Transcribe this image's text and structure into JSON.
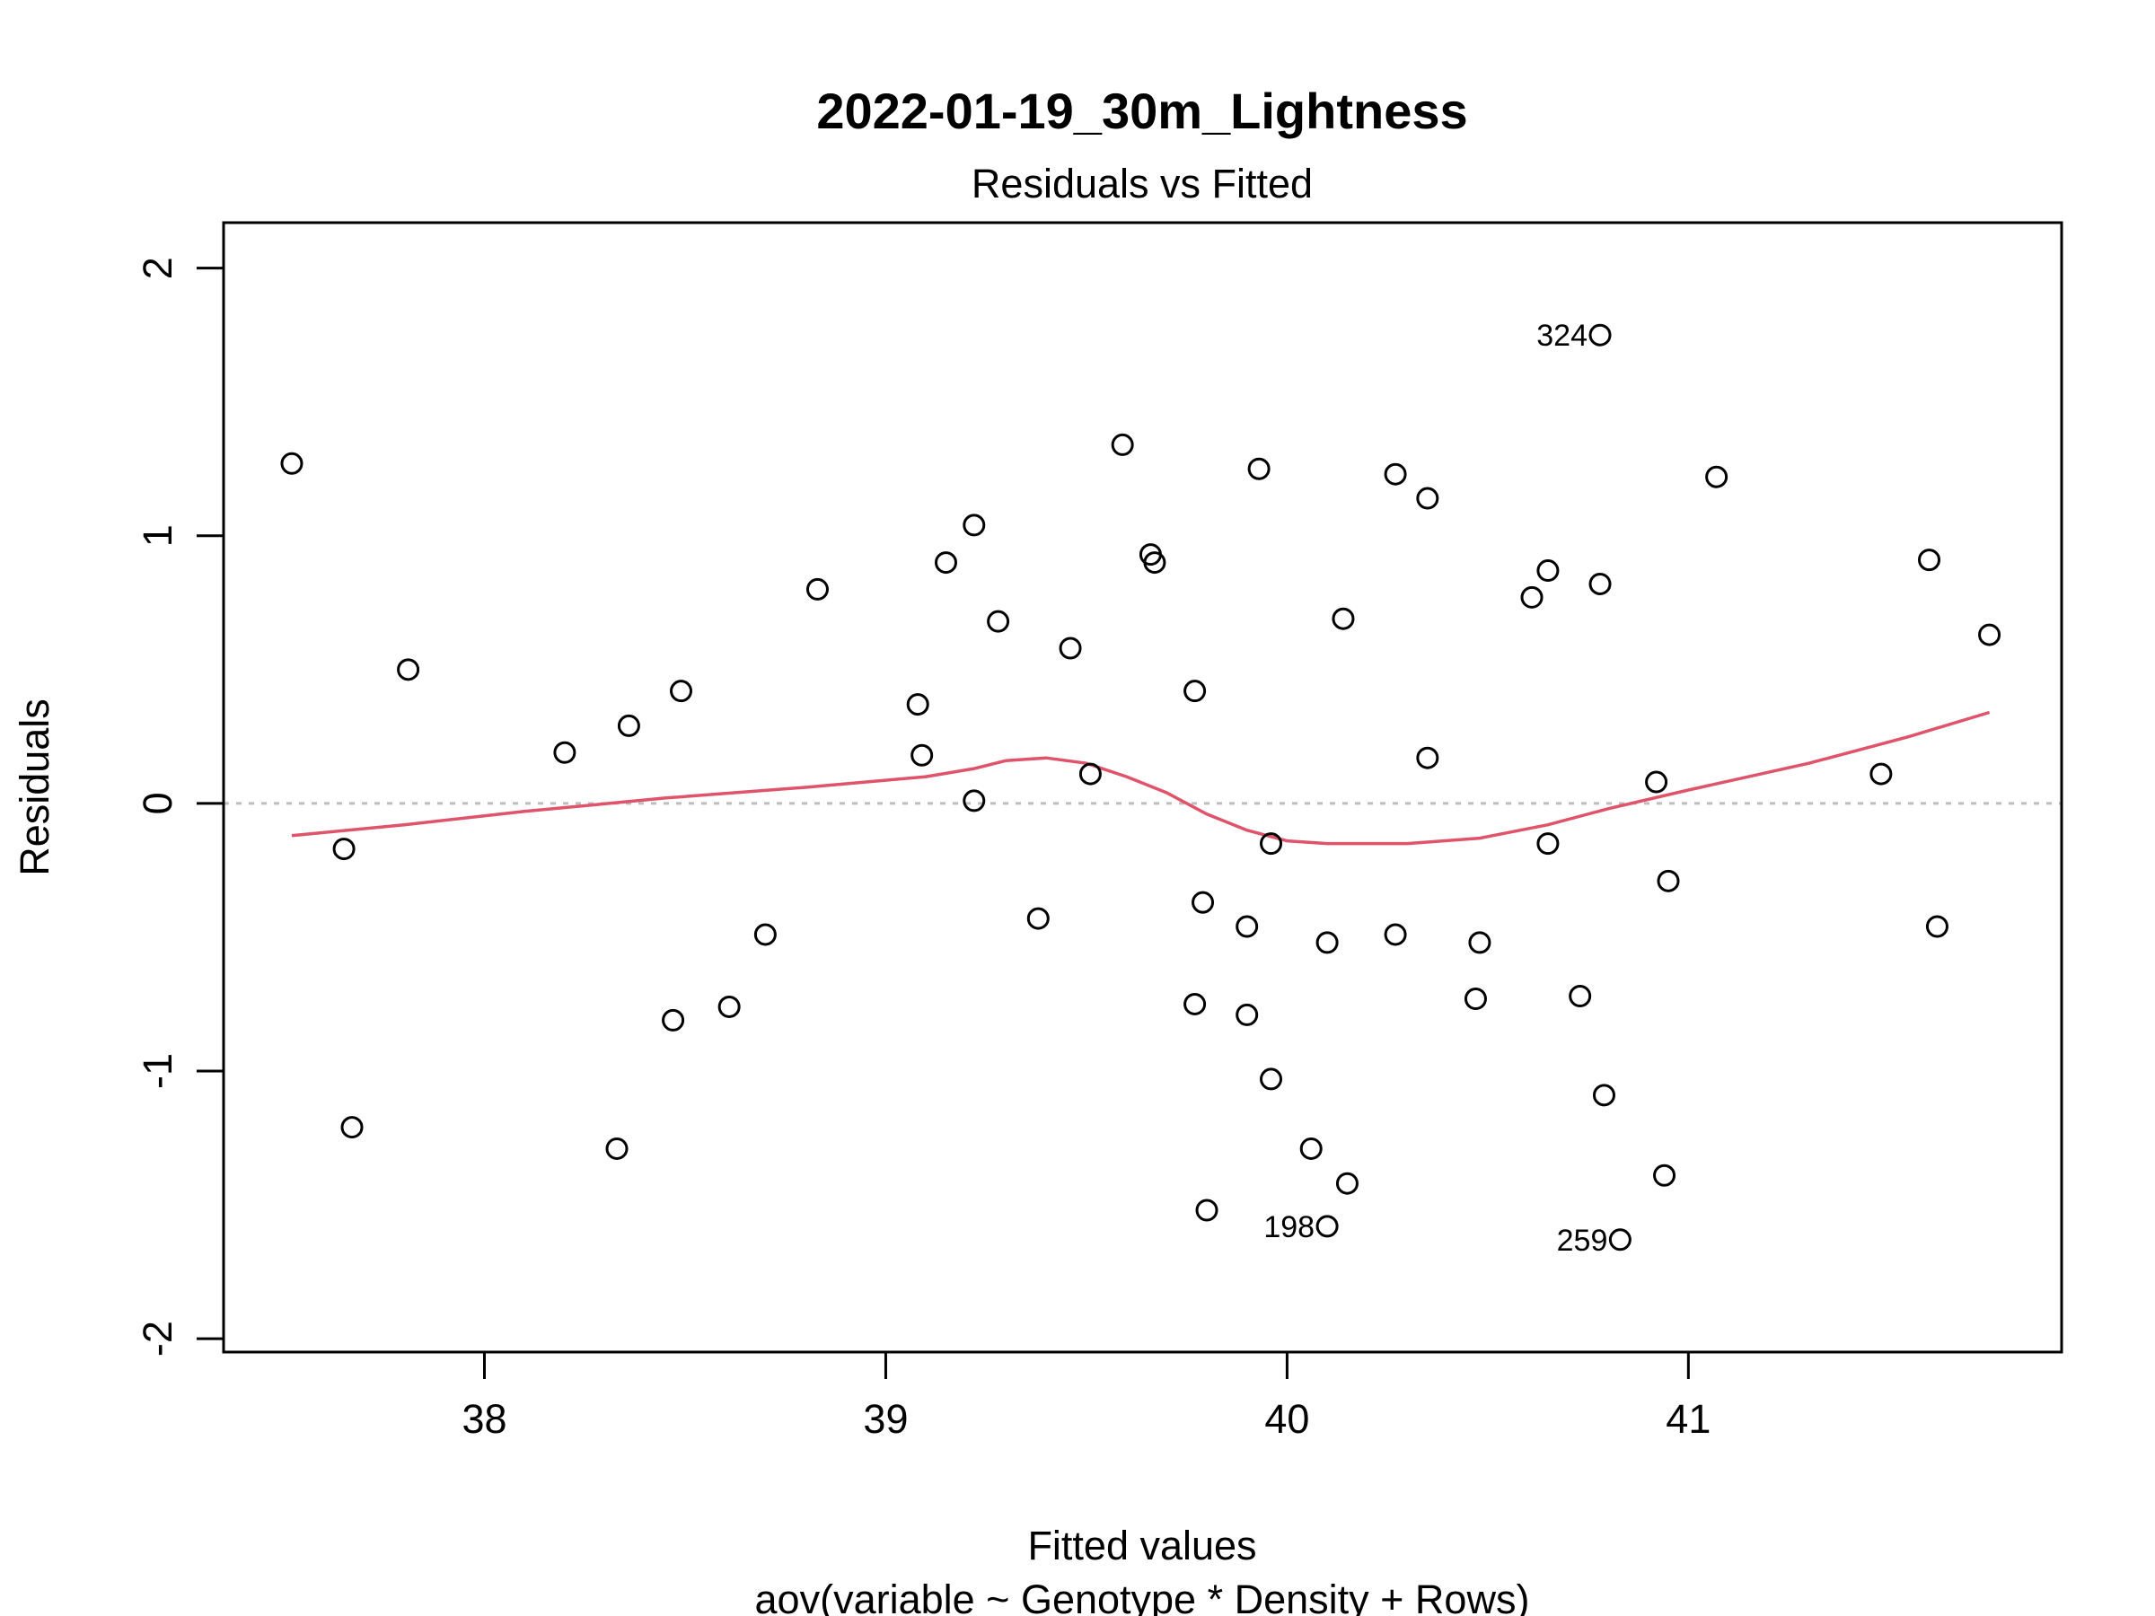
{
  "chart_data": {
    "type": "scatter",
    "title": "2022-01-19_30m_Lightness",
    "subtitle": "Residuals vs Fitted",
    "xlabel": "Fitted values",
    "caption": "aov(variable ~ Genotype * Density + Rows)",
    "ylabel": "Residuals",
    "xlim": [
      37.35,
      41.93
    ],
    "ylim": [
      -2.05,
      2.17
    ],
    "xticks": [
      "38",
      "39",
      "40",
      "41"
    ],
    "yticks": [
      "-2",
      "-1",
      "0",
      "1",
      "2"
    ],
    "reference_line_y": 0,
    "colors": {
      "points": "#000000",
      "smooth": "#df536b",
      "reference": "#bebebe"
    },
    "points": [
      {
        "x": 37.52,
        "y": 1.27
      },
      {
        "x": 37.65,
        "y": -0.17
      },
      {
        "x": 37.67,
        "y": -1.21
      },
      {
        "x": 37.81,
        "y": 0.5
      },
      {
        "x": 38.2,
        "y": 0.19
      },
      {
        "x": 38.33,
        "y": -1.29
      },
      {
        "x": 38.36,
        "y": 0.29
      },
      {
        "x": 38.47,
        "y": -0.81
      },
      {
        "x": 38.49,
        "y": 0.42
      },
      {
        "x": 38.61,
        "y": -0.76
      },
      {
        "x": 38.7,
        "y": -0.49
      },
      {
        "x": 38.83,
        "y": 0.8
      },
      {
        "x": 39.08,
        "y": 0.37
      },
      {
        "x": 39.09,
        "y": 0.18
      },
      {
        "x": 39.15,
        "y": 0.9
      },
      {
        "x": 39.22,
        "y": 0.01
      },
      {
        "x": 39.22,
        "y": 1.04
      },
      {
        "x": 39.28,
        "y": 0.68
      },
      {
        "x": 39.38,
        "y": -0.43
      },
      {
        "x": 39.46,
        "y": 0.58
      },
      {
        "x": 39.51,
        "y": 0.11
      },
      {
        "x": 39.59,
        "y": 1.34
      },
      {
        "x": 39.66,
        "y": 0.93
      },
      {
        "x": 39.67,
        "y": 0.9
      },
      {
        "x": 39.77,
        "y": 0.42
      },
      {
        "x": 39.77,
        "y": -0.75
      },
      {
        "x": 39.79,
        "y": -0.37
      },
      {
        "x": 39.8,
        "y": -1.52
      },
      {
        "x": 39.9,
        "y": -0.79
      },
      {
        "x": 39.9,
        "y": -0.46
      },
      {
        "x": 39.93,
        "y": 1.25
      },
      {
        "x": 39.96,
        "y": -0.15
      },
      {
        "x": 39.96,
        "y": -1.03
      },
      {
        "x": 40.06,
        "y": -1.29
      },
      {
        "x": 40.1,
        "y": -1.58
      },
      {
        "x": 40.1,
        "y": -0.52
      },
      {
        "x": 40.14,
        "y": 0.69
      },
      {
        "x": 40.15,
        "y": -1.42
      },
      {
        "x": 40.27,
        "y": 1.23
      },
      {
        "x": 40.27,
        "y": -0.49
      },
      {
        "x": 40.35,
        "y": 0.17
      },
      {
        "x": 40.35,
        "y": 1.14
      },
      {
        "x": 40.47,
        "y": -0.73
      },
      {
        "x": 40.48,
        "y": -0.52
      },
      {
        "x": 40.61,
        "y": 0.77
      },
      {
        "x": 40.65,
        "y": 0.87
      },
      {
        "x": 40.65,
        "y": -0.15
      },
      {
        "x": 40.73,
        "y": -0.72
      },
      {
        "x": 40.78,
        "y": 1.75
      },
      {
        "x": 40.78,
        "y": 0.82
      },
      {
        "x": 40.79,
        "y": -1.09
      },
      {
        "x": 40.83,
        "y": -1.63
      },
      {
        "x": 40.92,
        "y": 0.08
      },
      {
        "x": 40.94,
        "y": -1.39
      },
      {
        "x": 40.95,
        "y": -0.29
      },
      {
        "x": 41.07,
        "y": 1.22
      },
      {
        "x": 41.48,
        "y": 0.11
      },
      {
        "x": 41.6,
        "y": 0.91
      },
      {
        "x": 41.62,
        "y": -0.46
      },
      {
        "x": 41.75,
        "y": 0.63
      }
    ],
    "smooth": [
      {
        "x": 37.52,
        "y": -0.12
      },
      {
        "x": 37.8,
        "y": -0.08
      },
      {
        "x": 38.1,
        "y": -0.03
      },
      {
        "x": 38.45,
        "y": 0.02
      },
      {
        "x": 38.8,
        "y": 0.06
      },
      {
        "x": 39.1,
        "y": 0.1
      },
      {
        "x": 39.22,
        "y": 0.13
      },
      {
        "x": 39.3,
        "y": 0.16
      },
      {
        "x": 39.4,
        "y": 0.17
      },
      {
        "x": 39.5,
        "y": 0.15
      },
      {
        "x": 39.6,
        "y": 0.1
      },
      {
        "x": 39.7,
        "y": 0.04
      },
      {
        "x": 39.8,
        "y": -0.04
      },
      {
        "x": 39.9,
        "y": -0.1
      },
      {
        "x": 40.0,
        "y": -0.14
      },
      {
        "x": 40.1,
        "y": -0.15
      },
      {
        "x": 40.3,
        "y": -0.15
      },
      {
        "x": 40.48,
        "y": -0.13
      },
      {
        "x": 40.65,
        "y": -0.08
      },
      {
        "x": 40.8,
        "y": -0.02
      },
      {
        "x": 41.0,
        "y": 0.05
      },
      {
        "x": 41.3,
        "y": 0.15
      },
      {
        "x": 41.55,
        "y": 0.25
      },
      {
        "x": 41.75,
        "y": 0.34
      }
    ],
    "labeled_points": [
      {
        "label": "324",
        "x": 40.78,
        "y": 1.75
      },
      {
        "label": "198",
        "x": 40.1,
        "y": -1.58
      },
      {
        "label": "259",
        "x": 40.83,
        "y": -1.63
      }
    ]
  }
}
